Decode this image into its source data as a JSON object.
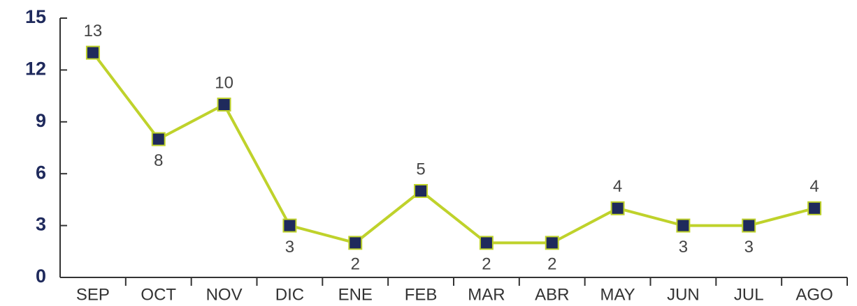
{
  "chart_data": {
    "type": "line",
    "categories": [
      "SEP",
      "OCT",
      "NOV",
      "DIC",
      "ENE",
      "FEB",
      "MAR",
      "ABR",
      "MAY",
      "JUN",
      "JUL",
      "AGO"
    ],
    "values": [
      13,
      8,
      10,
      3,
      2,
      5,
      2,
      2,
      4,
      3,
      3,
      4
    ],
    "color": "#bfd22b",
    "marker_color": "#1f2a5c",
    "ylim": [
      0,
      15
    ],
    "yticks": [
      0,
      3,
      6,
      9,
      12,
      15
    ]
  }
}
